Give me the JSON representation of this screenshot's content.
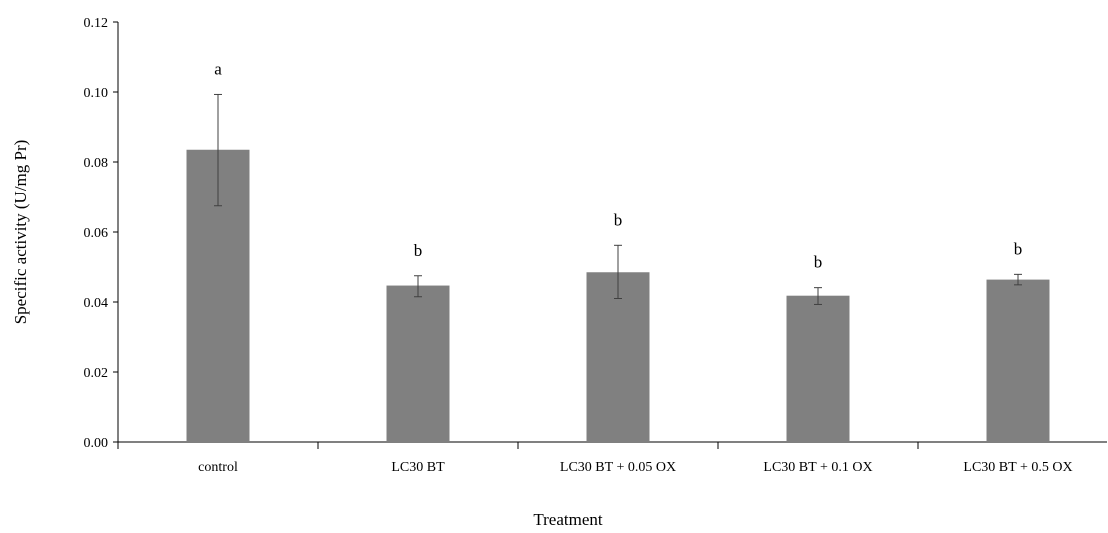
{
  "chart_data": {
    "type": "bar",
    "title": "",
    "xlabel": "Treatment",
    "ylabel": "Specific activity (U/mg Pr)",
    "ylim": [
      0,
      0.12
    ],
    "yticks": [
      "0.00",
      "0.02",
      "0.04",
      "0.06",
      "0.08",
      "0.10",
      "0.12"
    ],
    "grid": false,
    "categories": [
      "control",
      "LC30 BT",
      "LC30 BT + 0.05 OX",
      "LC30 BT + 0.1 OX",
      "LC30 BT + 0.5 OX"
    ],
    "values": [
      0.0835,
      0.0447,
      0.0485,
      0.0418,
      0.0464
    ],
    "error_low": [
      0.0675,
      0.0415,
      0.041,
      0.0393,
      0.0449
    ],
    "error_high": [
      0.0993,
      0.0475,
      0.0562,
      0.0441,
      0.0479
    ],
    "significance_labels": [
      "a",
      "b",
      "b",
      "b",
      "b"
    ],
    "bar_color": "#808080"
  }
}
